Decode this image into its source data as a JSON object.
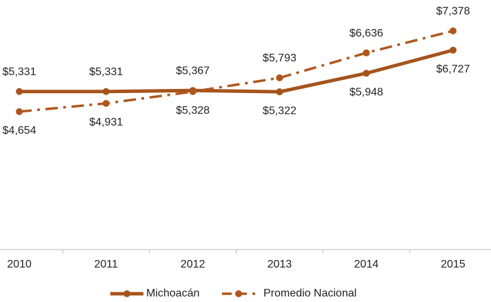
{
  "chart_data": {
    "type": "line",
    "categories": [
      "2010",
      "2011",
      "2012",
      "2013",
      "2014",
      "2015"
    ],
    "series": [
      {
        "name": "Michoacán",
        "color": "#a5541c",
        "style": "solid",
        "values": [
          5331,
          5331,
          5367,
          5322,
          5948,
          6727
        ],
        "value_labels": [
          "$5,331",
          "$5,331",
          "$5,367",
          "$5,322",
          "$5,948",
          "$6,727"
        ]
      },
      {
        "name": "Promedio Nacional",
        "color": "#b0561b",
        "style": "dashdot",
        "values": [
          4654,
          4931,
          5328,
          5793,
          6636,
          7378
        ],
        "value_labels": [
          "$4,654",
          "$4,931",
          "$5,328",
          "$5,793",
          "$6,636",
          "$7,378"
        ]
      }
    ],
    "ylim": [
      0,
      8000
    ]
  }
}
